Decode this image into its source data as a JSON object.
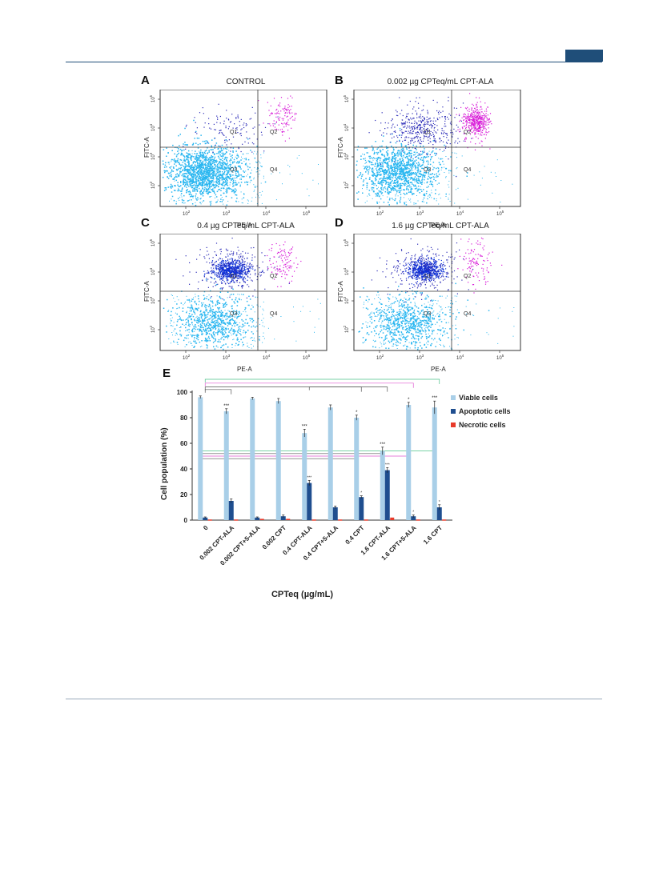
{
  "panels": [
    {
      "letter": "A",
      "title": "CONTROL",
      "xlabel": "PE-A",
      "ylabel": "FITC-A",
      "quadrants": [
        "Q1",
        "Q2",
        "Q3",
        "Q4"
      ],
      "level": 0
    },
    {
      "letter": "B",
      "title": "0.002 µg CPTeq/mL CPT-ALA",
      "xlabel": "PE-A",
      "ylabel": "FITC-A",
      "quadrants": [
        "Q1",
        "Q2",
        "Q3",
        "Q4"
      ],
      "level": 1
    },
    {
      "letter": "C",
      "title": "0.4 µg CPTeq/mL CPT-ALA",
      "xlabel": "PE-A",
      "ylabel": "FITC-A",
      "quadrants": [
        "Q1",
        "Q2",
        "Q3",
        "Q4"
      ],
      "level": 2
    },
    {
      "letter": "D",
      "title": "1.6 µg CPTeq/mL CPT-ALA",
      "xlabel": "PE-A",
      "ylabel": "FITC-A",
      "quadrants": [
        "Q1",
        "Q2",
        "Q3",
        "Q4"
      ],
      "level": 2
    }
  ],
  "flow_ticks": [
    "10",
    "10",
    "10",
    "10"
  ],
  "flow_exps": [
    "2",
    "3",
    "4",
    "5"
  ],
  "chart_data": {
    "type": "bar",
    "panel_letter": "E",
    "ylabel": "Cell population (%)",
    "xlabel": "CPTeq (µg/mL)",
    "ylim": [
      0,
      100
    ],
    "yticks": [
      "0",
      "20",
      "40",
      "60",
      "80",
      "100"
    ],
    "categories": [
      "0",
      "0.002 CPT-ALA",
      "0.002 CPT+5-ALA",
      "0.002 CPT",
      "0.4 CPT-ALA",
      "0.4 CPT+5-ALA",
      "0.4 CPT",
      "1.6 CPT-ALA",
      "1.6 CPT+5-ALA",
      "1.6 CPT"
    ],
    "series": [
      {
        "name": "Viable cells",
        "color": "#a9cfe8",
        "values": [
          96,
          85,
          95,
          93,
          68,
          88,
          80,
          54,
          90,
          88
        ],
        "errors": [
          1,
          2,
          1,
          2,
          3,
          2,
          2,
          3,
          2,
          5
        ]
      },
      {
        "name": "Apoptotic cells",
        "color": "#1f4e8f",
        "values": [
          2,
          15,
          2,
          3,
          29,
          10,
          18,
          39,
          3,
          10
        ],
        "errors": [
          0.5,
          1.5,
          0.5,
          1,
          2,
          1,
          1,
          2,
          1,
          2
        ]
      },
      {
        "name": "Necrotic cells",
        "color": "#e83a2a",
        "values": [
          0.5,
          0.5,
          1,
          1,
          0.5,
          0.5,
          0.5,
          2,
          0.5,
          0.5
        ],
        "errors": [
          0,
          0,
          0,
          0,
          0,
          0,
          0,
          0,
          0,
          0
        ]
      }
    ],
    "annotations": [
      "",
      "***",
      "",
      "",
      "***",
      "",
      "*",
      "***",
      "*",
      "***"
    ],
    "apoptotic_annotations": [
      "",
      "",
      "",
      "",
      "***",
      "",
      "*",
      "***",
      "*",
      "*"
    ]
  }
}
